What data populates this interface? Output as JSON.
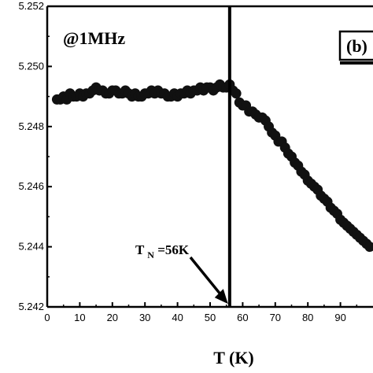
{
  "chart_data": {
    "type": "scatter",
    "panel_label": "(b)",
    "annotation_freq": "@1MHz",
    "annotation_tn_main": "T",
    "annotation_tn_sub": "N",
    "annotation_tn_value": "=56K",
    "xlabel": "T (K)",
    "ylabel": "",
    "xlim": [
      0,
      100
    ],
    "ylim": [
      5.242,
      5.252
    ],
    "x_ticks": [
      0,
      10,
      20,
      30,
      40,
      50,
      60,
      70,
      80,
      90
    ],
    "x_tick_labels": [
      "0",
      "10",
      "20",
      "30",
      "40",
      "50",
      "60",
      "70",
      "80",
      "90"
    ],
    "y_ticks": [
      5.242,
      5.244,
      5.246,
      5.248,
      5.25,
      5.252
    ],
    "y_tick_labels": [
      "5.242",
      "5.244",
      "5.246",
      "5.248",
      "5.250",
      "5.252"
    ],
    "vline_x": 56,
    "arrow_tip": [
      55.5,
      5.2421
    ],
    "colors": {
      "marker": "#111111",
      "axis": "#000000"
    },
    "series": [
      {
        "x": [
          3,
          4,
          5,
          6,
          7,
          8,
          9,
          10,
          11,
          12,
          13,
          14,
          15,
          16,
          17,
          18,
          19,
          20,
          21,
          22,
          23,
          24,
          25,
          26,
          27,
          28,
          29,
          30,
          31,
          32,
          33,
          34,
          35,
          36,
          37,
          38,
          39,
          40,
          41,
          42,
          43,
          44,
          45,
          46,
          47,
          48,
          49,
          50,
          51,
          52,
          53,
          54,
          55,
          56,
          57,
          58,
          59,
          60,
          61,
          62,
          63,
          64,
          65,
          66,
          67,
          68,
          69,
          70,
          71,
          72,
          73,
          74,
          75,
          76,
          77,
          78,
          79,
          80,
          81,
          82,
          83,
          84,
          85,
          86,
          87,
          88,
          89,
          90,
          91,
          92,
          93,
          94,
          95,
          96,
          97,
          98,
          99
        ],
        "y": [
          5.2489,
          5.2489,
          5.249,
          5.2489,
          5.2491,
          5.249,
          5.249,
          5.2491,
          5.249,
          5.2491,
          5.2491,
          5.2492,
          5.2493,
          5.2492,
          5.2492,
          5.2491,
          5.2491,
          5.2492,
          5.2492,
          5.2491,
          5.2491,
          5.2492,
          5.2491,
          5.249,
          5.2491,
          5.249,
          5.249,
          5.2491,
          5.2491,
          5.2492,
          5.2491,
          5.2492,
          5.2491,
          5.2491,
          5.249,
          5.249,
          5.2491,
          5.249,
          5.2491,
          5.2491,
          5.2492,
          5.2491,
          5.2492,
          5.2492,
          5.2493,
          5.2492,
          5.2493,
          5.2493,
          5.2492,
          5.2493,
          5.2494,
          5.2493,
          5.2493,
          5.2494,
          5.2492,
          5.2491,
          5.2488,
          5.2487,
          5.2487,
          5.2485,
          5.2485,
          5.2484,
          5.2483,
          5.2483,
          5.2482,
          5.248,
          5.2478,
          5.2477,
          5.2475,
          5.2475,
          5.2473,
          5.2471,
          5.247,
          5.2468,
          5.2467,
          5.2465,
          5.2464,
          5.2462,
          5.2461,
          5.246,
          5.2459,
          5.2457,
          5.2456,
          5.2455,
          5.2453,
          5.2452,
          5.2451,
          5.2449,
          5.2448,
          5.2447,
          5.2446,
          5.2445,
          5.2444,
          5.2443,
          5.2442,
          5.2441,
          5.244
        ]
      }
    ]
  }
}
